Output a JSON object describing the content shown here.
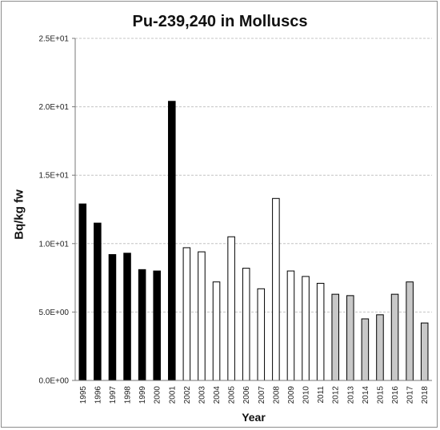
{
  "chart_data": {
    "type": "bar",
    "title": "Pu-239,240 in Molluscs",
    "xlabel": "Year",
    "ylabel": "Bq/kg fw",
    "ylim": [
      0,
      25
    ],
    "yticks": [
      0,
      5,
      10,
      15,
      20,
      25
    ],
    "ytick_labels": [
      "0.0E+00",
      "5.0E+00",
      "1.0E+01",
      "1.5E+01",
      "2.0E+01",
      "2.5E+01"
    ],
    "grid": true,
    "categories": [
      "1995",
      "1996",
      "1997",
      "1998",
      "1999",
      "2000",
      "2001",
      "2002",
      "2003",
      "2004",
      "2005",
      "2006",
      "2007",
      "2008",
      "2009",
      "2010",
      "2011",
      "2012",
      "2013",
      "2014",
      "2015",
      "2016",
      "2017",
      "2018"
    ],
    "values": [
      12.9,
      11.5,
      9.2,
      9.3,
      8.1,
      8.0,
      20.4,
      9.7,
      9.4,
      7.2,
      10.5,
      8.2,
      6.7,
      13.3,
      8.0,
      7.6,
      7.1,
      6.3,
      6.2,
      4.5,
      4.8,
      6.3,
      7.2,
      4.2
    ],
    "bar_colors": [
      "#000000",
      "#000000",
      "#000000",
      "#000000",
      "#000000",
      "#000000",
      "#000000",
      "#ffffff",
      "#ffffff",
      "#ffffff",
      "#ffffff",
      "#ffffff",
      "#ffffff",
      "#ffffff",
      "#ffffff",
      "#ffffff",
      "#ffffff",
      "#c8c8c8",
      "#c8c8c8",
      "#c8c8c8",
      "#c8c8c8",
      "#c8c8c8",
      "#c8c8c8",
      "#c8c8c8"
    ]
  }
}
